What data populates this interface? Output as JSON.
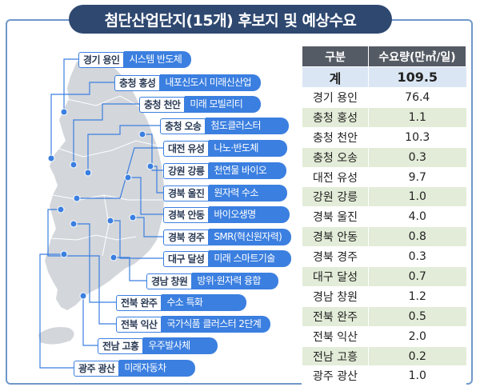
{
  "title": "첨단산업단지(15개) 후보지 및 예상수요",
  "colors": {
    "title_bg": "#2e4870",
    "accent_blue": "#3b7fe0",
    "table_header": "#555b64",
    "total_row": "#dbe6f4",
    "alt_row": "#e3ecd8",
    "land": "#d3d6db"
  },
  "sites": [
    {
      "name": "경기 용인",
      "field": "시스템 반도체"
    },
    {
      "name": "충청 홍성",
      "field": "내포신도시 미래신산업"
    },
    {
      "name": "충청 천안",
      "field": "미래 모빌리티"
    },
    {
      "name": "충청 오송",
      "field": "첨도클러스터"
    },
    {
      "name": "대전 유성",
      "field": "나노·반도체"
    },
    {
      "name": "강원 강릉",
      "field": "천연물 바이오"
    },
    {
      "name": "경북 울진",
      "field": "원자력 수소"
    },
    {
      "name": "경북 안동",
      "field": "바이오생명"
    },
    {
      "name": "경북 경주",
      "field": "SMR(혁신원자력)"
    },
    {
      "name": "대구 달성",
      "field": "미래 스마트기술"
    },
    {
      "name": "경남 창원",
      "field": "방위·원자력 융합"
    },
    {
      "name": "전북 완주",
      "field": "수소 특화"
    },
    {
      "name": "전북 익산",
      "field": "국가식품 클러스터 2단계"
    },
    {
      "name": "전남 고흥",
      "field": "우주발사체"
    },
    {
      "name": "광주 광산",
      "field": "미래자동차"
    }
  ],
  "chart_data": {
    "type": "table",
    "columns": [
      "구분",
      "수요량(만㎥/일)"
    ],
    "total": {
      "label": "계",
      "value": "109.5"
    },
    "rows": [
      {
        "label": "경기 용인",
        "value": "76.4"
      },
      {
        "label": "충청 홍성",
        "value": "1.1"
      },
      {
        "label": "충청 천안",
        "value": "10.3"
      },
      {
        "label": "충청 오송",
        "value": "0.3"
      },
      {
        "label": "대전 유성",
        "value": "9.7"
      },
      {
        "label": "강원 강릉",
        "value": "1.0"
      },
      {
        "label": "경북 울진",
        "value": "4.0"
      },
      {
        "label": "경북 안동",
        "value": "0.8"
      },
      {
        "label": "경북 경주",
        "value": "0.3"
      },
      {
        "label": "대구 달성",
        "value": "0.7"
      },
      {
        "label": "경남 창원",
        "value": "1.2"
      },
      {
        "label": "전북 완주",
        "value": "0.5"
      },
      {
        "label": "전북 익산",
        "value": "2.0"
      },
      {
        "label": "전남 고흥",
        "value": "0.2"
      },
      {
        "label": "광주 광산",
        "value": "1.0"
      }
    ]
  }
}
